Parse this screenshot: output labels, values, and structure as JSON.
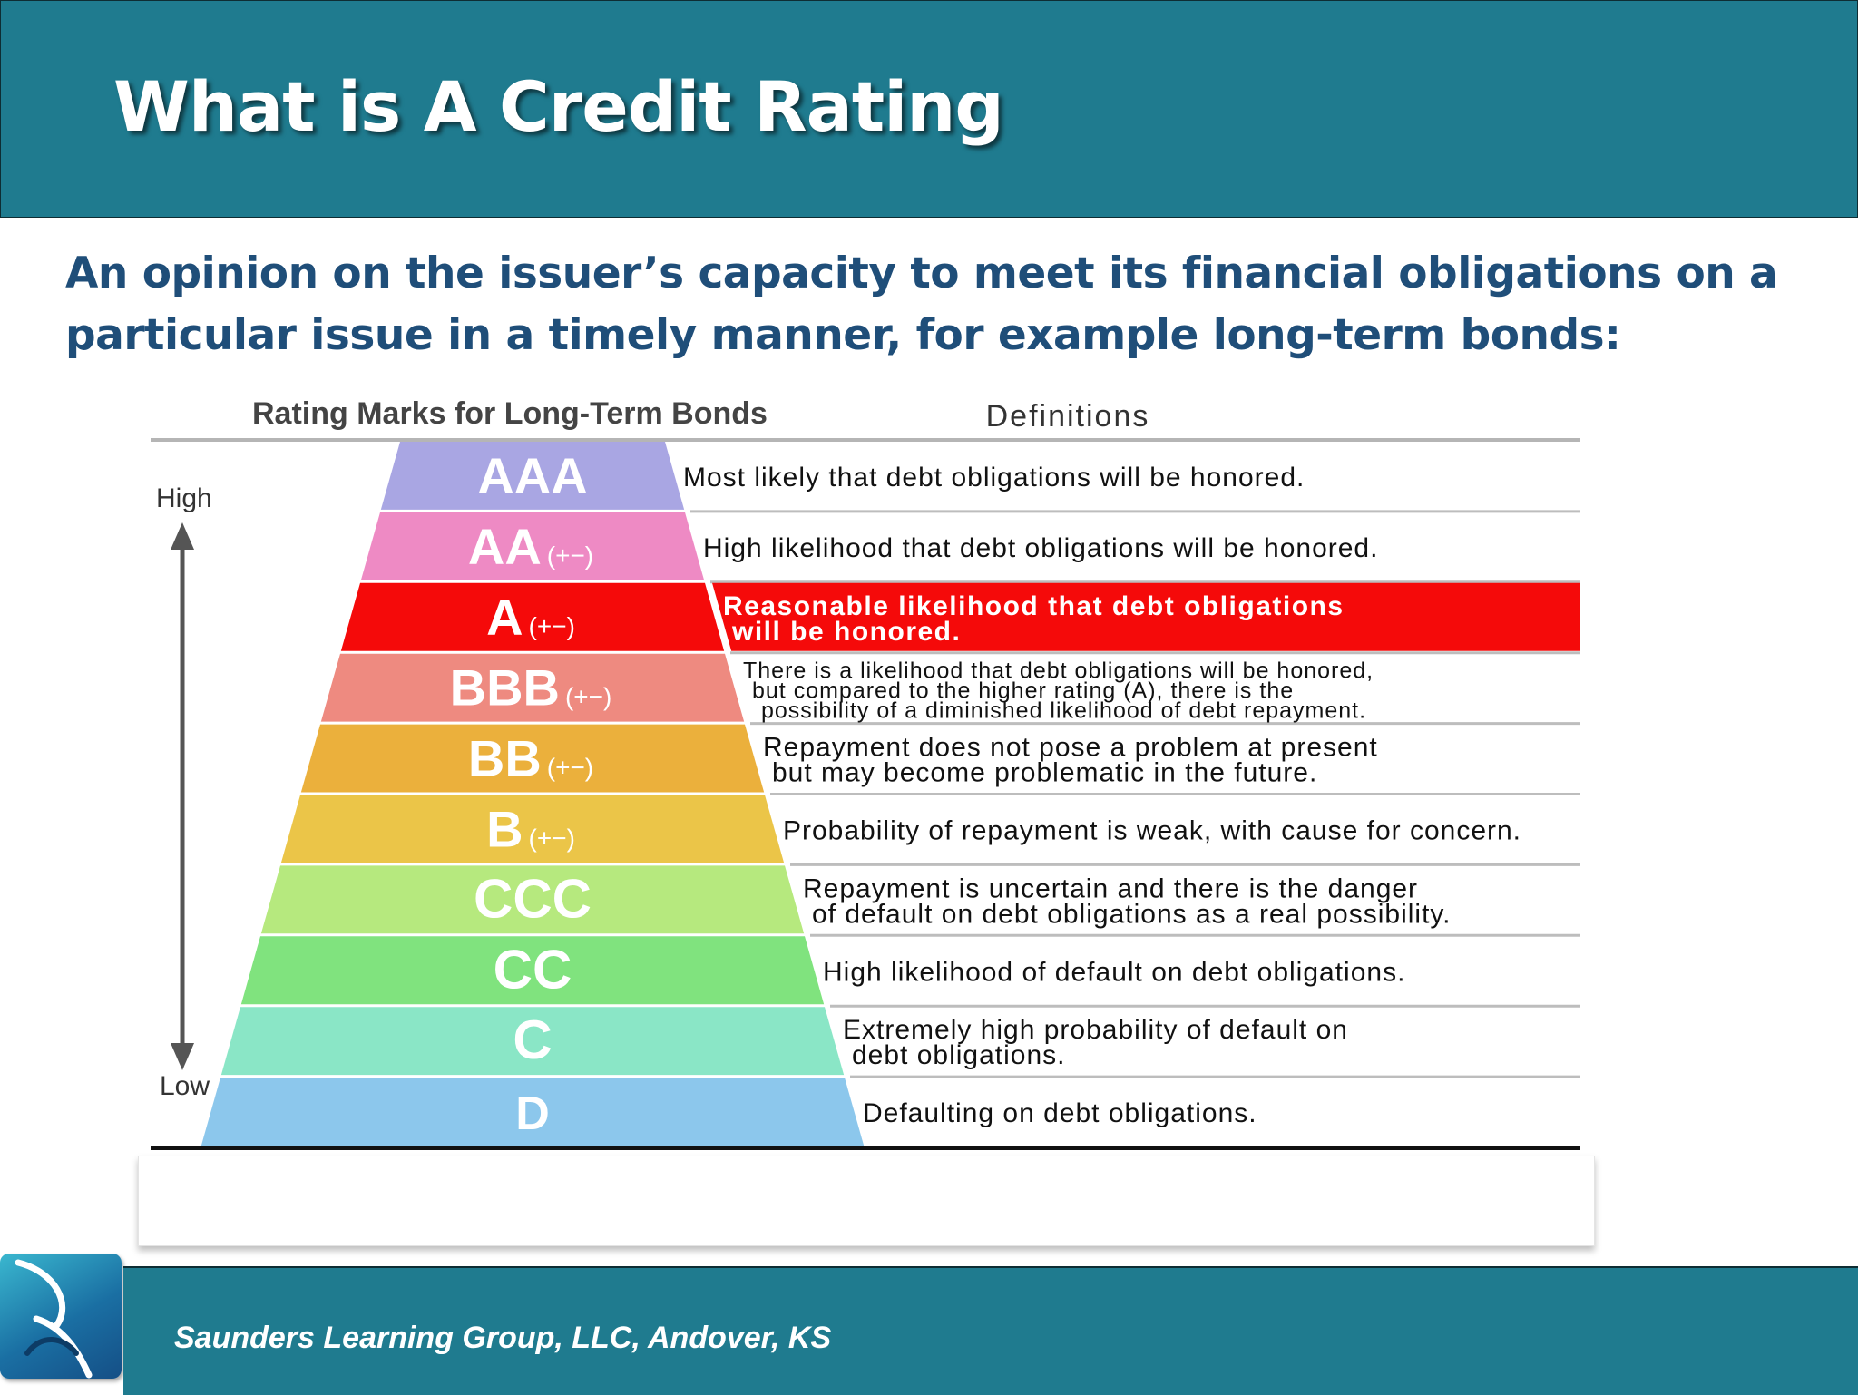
{
  "slide": {
    "title": "What is A Credit Rating",
    "subtitle": "An opinion on the issuer’s capacity to meet its financial obligations on a particular issue in a timely manner, for example long-term bonds:"
  },
  "figure": {
    "header_left": "Rating Marks for Long-Term Bonds",
    "header_right": "Definitions",
    "axis_high": "High",
    "axis_low": "Low",
    "ratings": [
      {
        "mark": "AAA",
        "suffix": "",
        "color": "#a9a6e3",
        "definition": [
          "Most likely that debt obligations will be honored."
        ]
      },
      {
        "mark": "AA",
        "suffix": "(+−)",
        "color": "#ee8ac4",
        "definition": [
          "High likelihood that debt obligations will be honored."
        ]
      },
      {
        "mark": "A",
        "suffix": "(+−)",
        "color": "#f50a0a",
        "highlight": true,
        "definition": [
          "Reasonable likelihood that debt obligations",
          "will be honored."
        ]
      },
      {
        "mark": "BBB",
        "suffix": "(+−)",
        "color": "#ee8a80",
        "definition": [
          "There is a likelihood that debt obligations will be honored,",
          "but compared to the higher rating (A), there is the",
          "possibility of a diminished likelihood of debt repayment."
        ]
      },
      {
        "mark": "BB",
        "suffix": "(+−)",
        "color": "#ebb03c",
        "definition": [
          "Repayment does not pose a problem at present",
          "but may become problematic in the future."
        ]
      },
      {
        "mark": "B",
        "suffix": "(+−)",
        "color": "#ebc548",
        "definition": [
          "Probability of repayment is weak, with cause for concern."
        ]
      },
      {
        "mark": "CCC",
        "suffix": "",
        "color": "#b6e97e",
        "definition": [
          "Repayment is uncertain and there is the danger",
          "of default on debt obligations as a real possibility."
        ]
      },
      {
        "mark": "CC",
        "suffix": "",
        "color": "#80e37e",
        "definition": [
          "High likelihood of default on debt obligations."
        ]
      },
      {
        "mark": "C",
        "suffix": "",
        "color": "#8ae6c6",
        "definition": [
          "Extremely high probability of default on",
          "debt obligations."
        ]
      },
      {
        "mark": "D",
        "suffix": "",
        "color": "#8cc7ec",
        "definition": [
          "Defaulting on debt obligations."
        ]
      }
    ]
  },
  "footer": {
    "text": "Saunders Learning Group, LLC, Andover, KS"
  },
  "colors": {
    "teal_bar": "#1f7b8f",
    "subtitle_blue": "#1f4e79"
  }
}
